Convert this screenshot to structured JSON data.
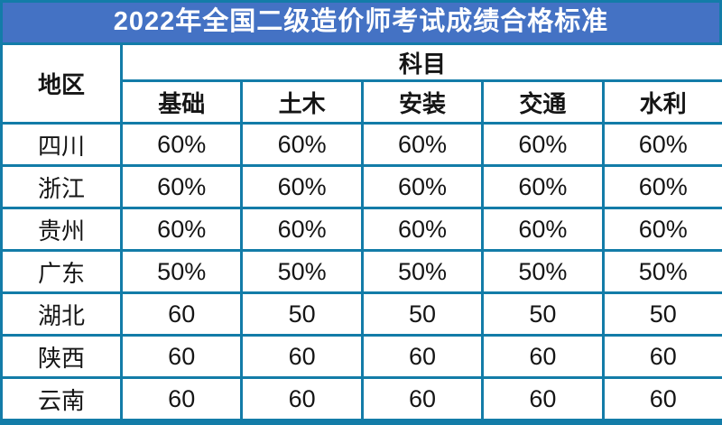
{
  "title": "2022年全国二级造价师考试成绩合格标准",
  "colors": {
    "title_bg": "#4472C4",
    "title_text": "#FFFFFF",
    "border": "#137CA8",
    "cell_bg": "#FFFFFF",
    "text": "#151515"
  },
  "table": {
    "region_header": "地区",
    "subject_group_header": "科目",
    "subject_columns": [
      "基础",
      "土木",
      "安装",
      "交通",
      "水利"
    ],
    "rows": [
      {
        "region": "四川",
        "values": [
          "60%",
          "60%",
          "60%",
          "60%",
          "60%"
        ]
      },
      {
        "region": "浙江",
        "values": [
          "60%",
          "60%",
          "60%",
          "60%",
          "60%"
        ]
      },
      {
        "region": "贵州",
        "values": [
          "60%",
          "60%",
          "60%",
          "60%",
          "60%"
        ]
      },
      {
        "region": "广东",
        "values": [
          "50%",
          "50%",
          "50%",
          "50%",
          "50%"
        ]
      },
      {
        "region": "湖北",
        "values": [
          "60",
          "50",
          "50",
          "50",
          "50"
        ]
      },
      {
        "region": "陕西",
        "values": [
          "60",
          "60",
          "60",
          "60",
          "60"
        ]
      },
      {
        "region": "云南",
        "values": [
          "60",
          "60",
          "60",
          "60",
          "60"
        ]
      }
    ]
  },
  "chart_data": {
    "type": "table",
    "title": "2022年全国二级造价师考试成绩合格标准",
    "columns": [
      "地区",
      "基础",
      "土木",
      "安装",
      "交通",
      "水利"
    ],
    "column_group": {
      "label": "科目",
      "covers": [
        "基础",
        "土木",
        "安装",
        "交通",
        "水利"
      ]
    },
    "rows": [
      [
        "四川",
        "60%",
        "60%",
        "60%",
        "60%",
        "60%"
      ],
      [
        "浙江",
        "60%",
        "60%",
        "60%",
        "60%",
        "60%"
      ],
      [
        "贵州",
        "60%",
        "60%",
        "60%",
        "60%",
        "60%"
      ],
      [
        "广东",
        "50%",
        "50%",
        "50%",
        "50%",
        "50%"
      ],
      [
        "湖北",
        "60",
        "50",
        "50",
        "50",
        "50"
      ],
      [
        "陕西",
        "60",
        "60",
        "60",
        "60",
        "60"
      ],
      [
        "云南",
        "60",
        "60",
        "60",
        "60",
        "60"
      ]
    ]
  }
}
